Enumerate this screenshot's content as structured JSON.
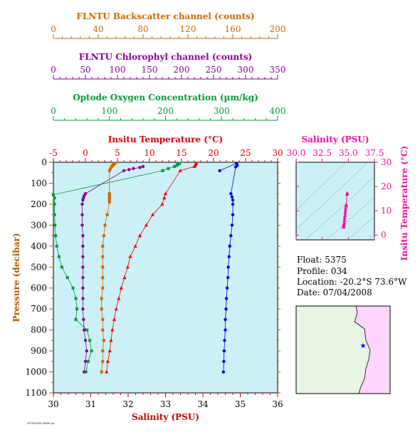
{
  "chart_data": [
    {
      "type": "line",
      "title": "",
      "xlabel": "Salinity (PSU)",
      "ylabel": "Pressure (decibar)",
      "ylim": [
        1100,
        0
      ],
      "grid": false,
      "background": "#ccf0f7",
      "axes": {
        "salinity": {
          "label": "Salinity (PSU)",
          "range": [
            30,
            36
          ],
          "ticks": [
            "30",
            "31",
            "32",
            "33",
            "34",
            "35",
            "36"
          ],
          "color": "#cc0000"
        },
        "pressure": {
          "label": "Pressure (decibar)",
          "range": [
            0,
            1100
          ],
          "ticks": [
            "0",
            "100",
            "200",
            "300",
            "400",
            "500",
            "600",
            "700",
            "800",
            "900",
            "1000",
            "1100"
          ],
          "color": "#b05a00"
        },
        "temperature": {
          "label": "Insitu Temperature (°C)",
          "range": [
            -5,
            30
          ],
          "ticks": [
            "-5",
            "0",
            "5",
            "10",
            "15",
            "20",
            "25",
            "30"
          ],
          "color": "#dd0000"
        },
        "oxygen": {
          "label": "Optode Oxygen Concentration (µm/kg)",
          "range": [
            0,
            400
          ],
          "ticks": [
            "0",
            "100",
            "200",
            "300",
            "400"
          ],
          "color": "#009933"
        },
        "chlorophyll": {
          "label": "FLNTU Chlorophyl channel (counts)",
          "range": [
            0,
            350
          ],
          "ticks": [
            "0",
            "50",
            "100",
            "150",
            "200",
            "250",
            "300",
            "350"
          ],
          "color": "#880099"
        },
        "backscatter": {
          "label": "FLNTU Backscatter channel (counts)",
          "range": [
            0,
            200
          ],
          "ticks": [
            "0",
            "40",
            "80",
            "120",
            "160",
            "200"
          ],
          "color": "#cc6600"
        }
      },
      "series": [
        {
          "name": "Salinity",
          "axis": "salinity",
          "color": "#0000dd",
          "marker": "circle",
          "points": [
            [
              34.45,
              40
            ],
            [
              34.9,
              5
            ],
            [
              34.92,
              15
            ],
            [
              34.88,
              22
            ],
            [
              34.75,
              150
            ],
            [
              34.78,
              165
            ],
            [
              34.8,
              180
            ],
            [
              34.8,
              200
            ],
            [
              34.8,
              250
            ],
            [
              34.78,
              300
            ],
            [
              34.75,
              350
            ],
            [
              34.72,
              400
            ],
            [
              34.7,
              450
            ],
            [
              34.68,
              500
            ],
            [
              34.67,
              550
            ],
            [
              34.65,
              600
            ],
            [
              34.63,
              650
            ],
            [
              34.62,
              700
            ],
            [
              34.6,
              750
            ],
            [
              34.6,
              800
            ],
            [
              34.58,
              850
            ],
            [
              34.57,
              900
            ],
            [
              34.56,
              950
            ],
            [
              34.55,
              1000
            ]
          ]
        },
        {
          "name": "Insitu Temperature",
          "axis": "temperature",
          "color": "#ee0000",
          "marker": "triangle",
          "points": [
            [
              17.3,
              5
            ],
            [
              17.2,
              10
            ],
            [
              17.1,
              15
            ],
            [
              17.0,
              20
            ],
            [
              14.8,
              40
            ],
            [
              12.5,
              150
            ],
            [
              12.3,
              170
            ],
            [
              12.0,
              200
            ],
            [
              10.5,
              250
            ],
            [
              9.5,
              300
            ],
            [
              8.5,
              350
            ],
            [
              7.8,
              400
            ],
            [
              7.0,
              450
            ],
            [
              6.6,
              500
            ],
            [
              6.1,
              550
            ],
            [
              5.6,
              600
            ],
            [
              5.2,
              650
            ],
            [
              4.8,
              700
            ],
            [
              4.5,
              750
            ],
            [
              4.2,
              800
            ],
            [
              4.0,
              850
            ],
            [
              3.8,
              900
            ],
            [
              3.5,
              950
            ],
            [
              3.3,
              1000
            ]
          ]
        },
        {
          "name": "Oxygen",
          "axis": "oxygen",
          "color": "#009933",
          "marker": "square",
          "points": [
            [
              225,
              5
            ],
            [
              222,
              10
            ],
            [
              220,
              15
            ],
            [
              216,
              20
            ],
            [
              205,
              30
            ],
            [
              195,
              40
            ],
            [
              0,
              155
            ],
            [
              2,
              170
            ],
            [
              2,
              200
            ],
            [
              2,
              250
            ],
            [
              3,
              300
            ],
            [
              4,
              350
            ],
            [
              6,
              400
            ],
            [
              10,
              450
            ],
            [
              15,
              500
            ],
            [
              25,
              550
            ],
            [
              35,
              600
            ],
            [
              40,
              650
            ],
            [
              42,
              700
            ],
            [
              40,
              750
            ],
            [
              60,
              800
            ],
            [
              65,
              850
            ],
            [
              68,
              900
            ],
            [
              62,
              950
            ],
            [
              58,
              1000
            ]
          ]
        },
        {
          "name": "Chlorophyl",
          "axis": "chlorophyll",
          "color": "#880099",
          "marker": "circle",
          "points": [
            [
              140,
              20
            ],
            [
              135,
              25
            ],
            [
              125,
              30
            ],
            [
              118,
              35
            ],
            [
              110,
              40
            ],
            [
              50,
              150
            ],
            [
              48,
              160
            ],
            [
              47,
              170
            ],
            [
              46,
              180
            ],
            [
              45,
              200
            ],
            [
              45,
              250
            ],
            [
              45,
              300
            ],
            [
              46,
              350
            ],
            [
              46,
              400
            ],
            [
              46,
              450
            ],
            [
              46,
              500
            ],
            [
              46,
              550
            ],
            [
              46,
              600
            ],
            [
              46,
              650
            ],
            [
              46,
              700
            ],
            [
              47,
              750
            ],
            [
              48,
              800
            ],
            [
              50,
              850
            ],
            [
              52,
              900
            ],
            [
              50,
              950
            ],
            [
              48,
              1000
            ]
          ]
        },
        {
          "name": "Backscatter",
          "axis": "backscatter",
          "color": "#cc6600",
          "marker": "square",
          "points": [
            [
              55,
              5
            ],
            [
              54,
              10
            ],
            [
              53,
              15
            ],
            [
              52,
              20
            ],
            [
              51,
              30
            ],
            [
              50,
              40
            ],
            [
              50,
              150
            ],
            [
              50,
              160
            ],
            [
              50,
              170
            ],
            [
              50,
              180
            ],
            [
              50,
              190
            ],
            [
              48,
              250
            ],
            [
              46,
              300
            ],
            [
              45,
              350
            ],
            [
              44,
              400
            ],
            [
              44,
              450
            ],
            [
              44,
              500
            ],
            [
              44,
              550
            ],
            [
              44,
              600
            ],
            [
              43,
              650
            ],
            [
              43,
              700
            ],
            [
              44,
              750
            ],
            [
              44,
              800
            ],
            [
              45,
              850
            ],
            [
              44,
              900
            ],
            [
              44,
              950
            ],
            [
              43,
              1000
            ]
          ]
        }
      ]
    },
    {
      "type": "scatter",
      "title": "",
      "xlabel": "Salinity (PSU)",
      "ylabel": "Insitu Temperature (°C)",
      "xlim": [
        30,
        37.5
      ],
      "ylim": [
        -2,
        30
      ],
      "xticks": [
        "30.0",
        "32.5",
        "35.0",
        "37.5"
      ],
      "yticks": [
        "0",
        "10",
        "20",
        "30"
      ],
      "color": "#ee1199",
      "points": [
        [
          34.9,
          17.3
        ],
        [
          34.88,
          16.8
        ],
        [
          34.8,
          12.5
        ],
        [
          34.78,
          12.0
        ],
        [
          34.75,
          11.0
        ],
        [
          34.72,
          10.0
        ],
        [
          34.7,
          9.0
        ],
        [
          34.68,
          8.0
        ],
        [
          34.65,
          7.0
        ],
        [
          34.62,
          6.0
        ],
        [
          34.6,
          5.0
        ],
        [
          34.58,
          4.5
        ],
        [
          34.56,
          4.0
        ],
        [
          34.55,
          3.5
        ],
        [
          34.55,
          3.2
        ]
      ]
    }
  ],
  "info": {
    "float": "Float:  5375",
    "profile": "Profile:  034",
    "location": "Location:  -20.2°S  73.6°W",
    "date": "Date:  07/04/2008"
  },
  "footer_note": "5375SG034.2008C.ps",
  "colors": {
    "plot_bg": "#ccf0f7",
    "map_land": "#ffd6ff",
    "map_sea": "#e8f4e4",
    "float_marker": "#0000ff"
  }
}
